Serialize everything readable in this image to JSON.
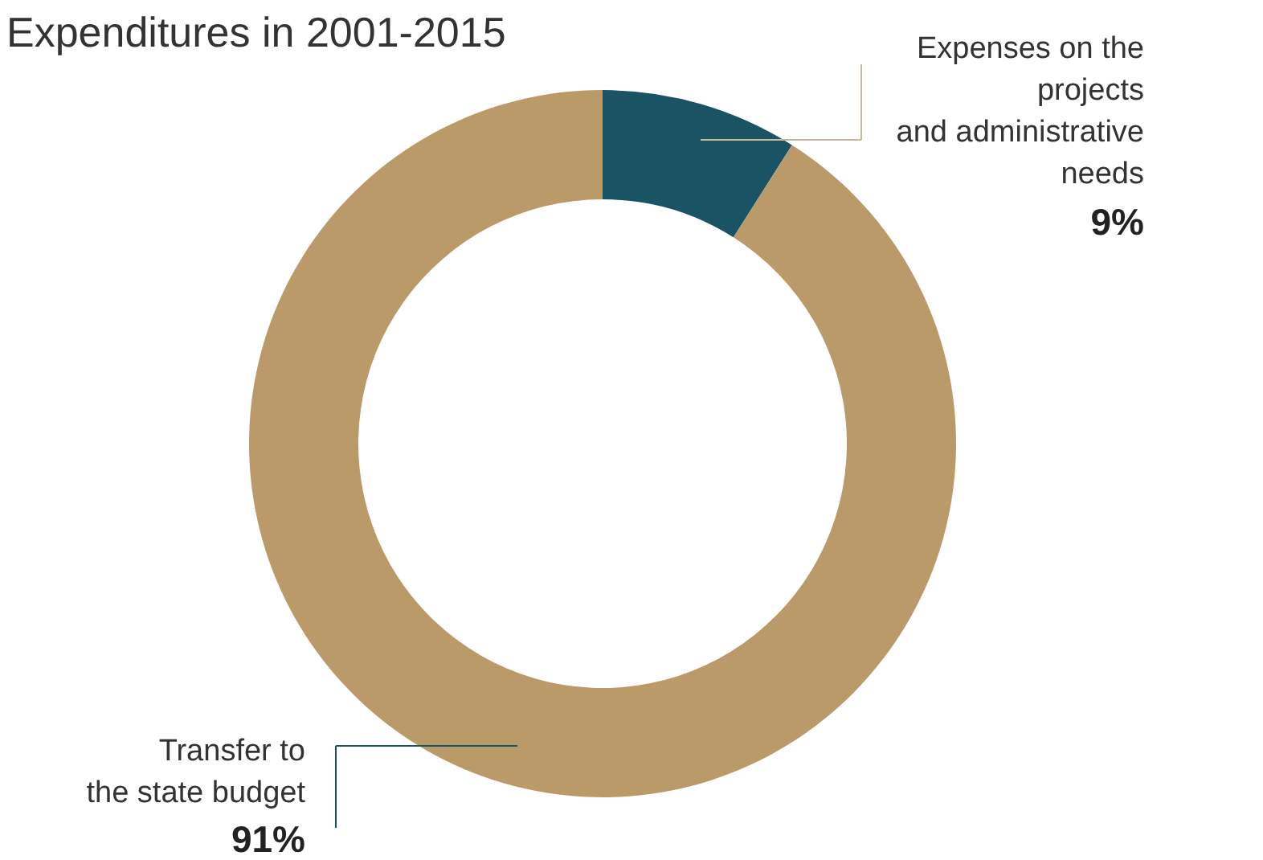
{
  "chart_data": {
    "type": "donut",
    "title": "Expenditures in 2001-2015",
    "categories": [
      "Expenses on the\nprojects\nand administrative\nneeds",
      "Transfer to\nthe state budget"
    ],
    "values": [
      9,
      91
    ],
    "colors": [
      "#1a5364",
      "#bb9a69"
    ],
    "value_labels": [
      "9%",
      "91%"
    ],
    "legend": false
  }
}
